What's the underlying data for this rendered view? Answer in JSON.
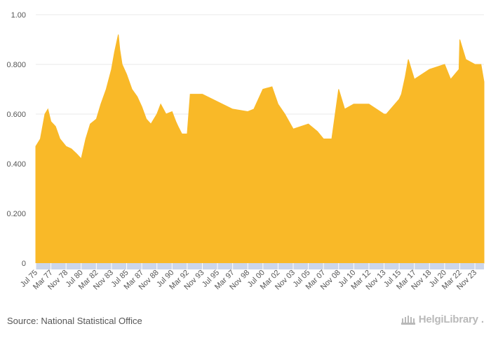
{
  "chart_data": {
    "type": "area",
    "title": "",
    "xlabel": "",
    "ylabel": "",
    "ylim": [
      0,
      1.0
    ],
    "yticks": [
      0,
      0.2,
      0.4,
      0.6,
      0.8,
      1.0
    ],
    "ytick_labels": [
      "0",
      "0.200",
      "0.400",
      "0.600",
      "0.800",
      "1.00"
    ],
    "grid": true,
    "legend": "none",
    "x_ticks": [
      "Jul 75",
      "Mar 77",
      "Nov 78",
      "Jul 80",
      "Mar 82",
      "Nov 83",
      "Jul 85",
      "Mar 87",
      "Nov 88",
      "Jul 90",
      "Mar 92",
      "Nov 93",
      "Jul 95",
      "Mar 97",
      "Nov 98",
      "Jul 00",
      "Mar 02",
      "Nov 03",
      "Jul 05",
      "Mar 07",
      "Nov 08",
      "Jul 10",
      "Mar 12",
      "Nov 13",
      "Jul 15",
      "Mar 17",
      "Nov 18",
      "Jul 20",
      "Mar 22",
      "Nov 23"
    ],
    "series": [
      {
        "x": [
          "Jul 75",
          "Jan 76",
          "Jul 76",
          "Nov 76",
          "Mar 77",
          "Sep 77",
          "Mar 78",
          "Nov 78",
          "Jun 79",
          "Jan 80",
          "Jul 80",
          "Jan 81",
          "Jul 81",
          "Mar 82",
          "Sep 82",
          "Apr 83",
          "Nov 83",
          "Mar 84",
          "Aug 84",
          "Oct 84",
          "Jan 85",
          "Jul 85",
          "Feb 86",
          "Sep 86",
          "Mar 87",
          "Sep 87",
          "Mar 88",
          "Nov 88",
          "Apr 89",
          "Nov 89",
          "Jul 90",
          "Dec 90",
          "Mar 91",
          "Aug 91",
          "Mar 92",
          "Jul 92",
          "Nov 93",
          "Jul 95",
          "Mar 97",
          "Nov 98",
          "Jul 99",
          "Jul 00",
          "Jul 01",
          "Mar 02",
          "Dec 02",
          "Nov 03",
          "Jul 05",
          "Jul 06",
          "Mar 07",
          "Feb 08",
          "Nov 08",
          "Jul 09",
          "Jul 10",
          "Mar 12",
          "Nov 13",
          "Feb 14",
          "Jul 15",
          "Oct 15",
          "Mar 16",
          "Jul 16",
          "Mar 17",
          "Nov 18",
          "Jul 20",
          "Mar 21",
          "Feb 22",
          "Mar 22",
          "Nov 22",
          "Nov 23",
          "Jul 24",
          "Nov 24"
        ],
        "values": [
          0.47,
          0.5,
          0.6,
          0.62,
          0.57,
          0.55,
          0.5,
          0.47,
          0.46,
          0.44,
          0.42,
          0.5,
          0.56,
          0.58,
          0.64,
          0.7,
          0.78,
          0.85,
          0.92,
          0.86,
          0.8,
          0.76,
          0.7,
          0.67,
          0.63,
          0.58,
          0.56,
          0.6,
          0.64,
          0.6,
          0.61,
          0.57,
          0.55,
          0.52,
          0.52,
          0.68,
          0.68,
          0.65,
          0.62,
          0.61,
          0.62,
          0.7,
          0.71,
          0.64,
          0.6,
          0.54,
          0.56,
          0.53,
          0.5,
          0.5,
          0.7,
          0.62,
          0.64,
          0.64,
          0.6,
          0.6,
          0.66,
          0.68,
          0.75,
          0.82,
          0.74,
          0.78,
          0.8,
          0.74,
          0.78,
          0.9,
          0.82,
          0.8,
          0.8,
          0.73
        ]
      }
    ],
    "colors": {
      "area": "#f9b928",
      "grid": "#e8e8e8",
      "axis_band": "#ccd6eb",
      "text": "#555555"
    }
  },
  "footer": {
    "source": "Source: National Statistical Office",
    "brand": "HelgiLibrary",
    "brand_dot": "."
  }
}
